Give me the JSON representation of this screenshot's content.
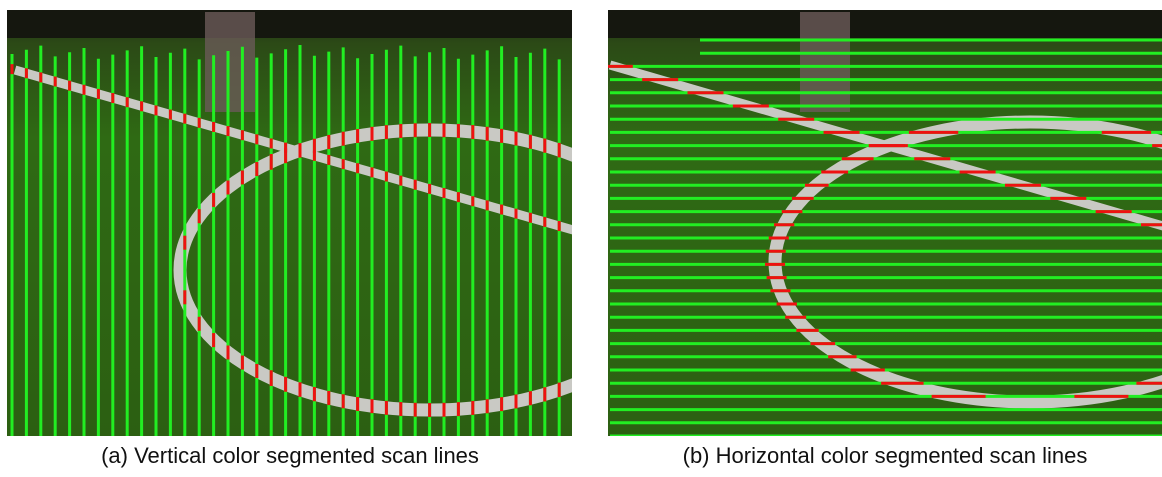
{
  "figures": [
    {
      "caption": "(a) Vertical color segmented scan lines"
    },
    {
      "caption": "(b) Horizontal color segmented scan lines"
    }
  ]
}
